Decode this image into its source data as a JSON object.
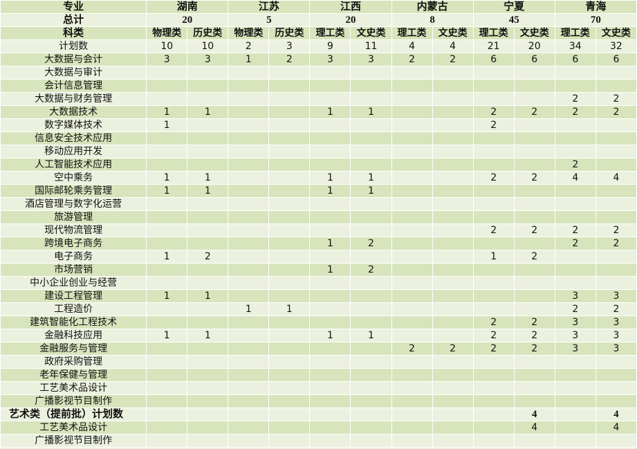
{
  "header": {
    "major_label": "专业",
    "total_label": "总计",
    "category_label": "科类",
    "provinces": [
      {
        "name": "湖南",
        "total": "20",
        "categories": [
          "物理类",
          "历史类"
        ]
      },
      {
        "name": "江苏",
        "total": "5",
        "categories": [
          "物理类",
          "历史类"
        ]
      },
      {
        "name": "江西",
        "total": "20",
        "categories": [
          "理工类",
          "文史类"
        ]
      },
      {
        "name": "内蒙古",
        "total": "8",
        "categories": [
          "理工类",
          "文史类"
        ]
      },
      {
        "name": "宁夏",
        "total": "45",
        "categories": [
          "理工类",
          "文史类"
        ]
      },
      {
        "name": "青海",
        "total": "70",
        "categories": [
          "理工类",
          "文史类"
        ]
      }
    ]
  },
  "rows": [
    {
      "name": "计划数",
      "values": [
        "10",
        "10",
        "2",
        "3",
        "9",
        "11",
        "4",
        "4",
        "21",
        "20",
        "34",
        "32"
      ]
    },
    {
      "name": "大数据与会计",
      "values": [
        "3",
        "3",
        "1",
        "2",
        "3",
        "3",
        "2",
        "2",
        "6",
        "6",
        "6",
        "6"
      ]
    },
    {
      "name": "大数据与审计",
      "values": [
        "",
        "",
        "",
        "",
        "",
        "",
        "",
        "",
        "",
        "",
        "",
        ""
      ]
    },
    {
      "name": "会计信息管理",
      "values": [
        "",
        "",
        "",
        "",
        "",
        "",
        "",
        "",
        "",
        "",
        "",
        ""
      ]
    },
    {
      "name": "大数据与财务管理",
      "values": [
        "",
        "",
        "",
        "",
        "",
        "",
        "",
        "",
        "",
        "",
        "2",
        "2"
      ]
    },
    {
      "name": "大数据技术",
      "values": [
        "1",
        "1",
        "",
        "",
        "1",
        "1",
        "",
        "",
        "2",
        "2",
        "2",
        "2"
      ]
    },
    {
      "name": "数字媒体技术",
      "values": [
        "1",
        "",
        "",
        "",
        "",
        "",
        "",
        "",
        "2",
        "",
        "",
        ""
      ]
    },
    {
      "name": "信息安全技术应用",
      "values": [
        "",
        "",
        "",
        "",
        "",
        "",
        "",
        "",
        "",
        "",
        "",
        ""
      ]
    },
    {
      "name": "移动应用开发",
      "values": [
        "",
        "",
        "",
        "",
        "",
        "",
        "",
        "",
        "",
        "",
        "",
        ""
      ]
    },
    {
      "name": "人工智能技术应用",
      "values": [
        "",
        "",
        "",
        "",
        "",
        "",
        "",
        "",
        "",
        "",
        "2",
        ""
      ]
    },
    {
      "name": "空中乘务",
      "values": [
        "1",
        "1",
        "",
        "",
        "1",
        "1",
        "",
        "",
        "2",
        "2",
        "4",
        "4"
      ]
    },
    {
      "name": "国际邮轮乘务管理",
      "values": [
        "1",
        "1",
        "",
        "",
        "1",
        "1",
        "",
        "",
        "",
        "",
        "",
        ""
      ]
    },
    {
      "name": "酒店管理与数字化运营",
      "values": [
        "",
        "",
        "",
        "",
        "",
        "",
        "",
        "",
        "",
        "",
        "",
        ""
      ]
    },
    {
      "name": "旅游管理",
      "values": [
        "",
        "",
        "",
        "",
        "",
        "",
        "",
        "",
        "",
        "",
        "",
        ""
      ]
    },
    {
      "name": "现代物流管理",
      "values": [
        "",
        "",
        "",
        "",
        "",
        "",
        "",
        "",
        "2",
        "2",
        "2",
        "2"
      ]
    },
    {
      "name": "跨境电子商务",
      "values": [
        "",
        "",
        "",
        "",
        "1",
        "2",
        "",
        "",
        "",
        "",
        "2",
        "2"
      ]
    },
    {
      "name": "电子商务",
      "values": [
        "1",
        "2",
        "",
        "",
        "",
        "",
        "",
        "",
        "1",
        "2",
        "",
        ""
      ]
    },
    {
      "name": "市场营销",
      "values": [
        "",
        "",
        "",
        "",
        "1",
        "2",
        "",
        "",
        "",
        "",
        "",
        ""
      ]
    },
    {
      "name": "中小企业创业与经营",
      "values": [
        "",
        "",
        "",
        "",
        "",
        "",
        "",
        "",
        "",
        "",
        "",
        ""
      ]
    },
    {
      "name": "建设工程管理",
      "values": [
        "1",
        "1",
        "",
        "",
        "",
        "",
        "",
        "",
        "",
        "",
        "3",
        "3"
      ]
    },
    {
      "name": "工程造价",
      "values": [
        "",
        "",
        "1",
        "1",
        "",
        "",
        "",
        "",
        "",
        "",
        "2",
        "2"
      ]
    },
    {
      "name": "建筑智能化工程技术",
      "values": [
        "",
        "",
        "",
        "",
        "",
        "",
        "",
        "",
        "2",
        "2",
        "3",
        "3"
      ]
    },
    {
      "name": "金融科技应用",
      "values": [
        "1",
        "1",
        "",
        "",
        "1",
        "1",
        "",
        "",
        "2",
        "2",
        "3",
        "3"
      ]
    },
    {
      "name": "金融服务与管理",
      "values": [
        "",
        "",
        "",
        "",
        "",
        "",
        "2",
        "2",
        "2",
        "2",
        "3",
        "3"
      ]
    },
    {
      "name": "政府采购管理",
      "values": [
        "",
        "",
        "",
        "",
        "",
        "",
        "",
        "",
        "",
        "",
        "",
        ""
      ]
    },
    {
      "name": "老年保健与管理",
      "values": [
        "",
        "",
        "",
        "",
        "",
        "",
        "",
        "",
        "",
        "",
        "",
        ""
      ]
    },
    {
      "name": "工艺美术品设计",
      "values": [
        "",
        "",
        "",
        "",
        "",
        "",
        "",
        "",
        "",
        "",
        "",
        ""
      ]
    },
    {
      "name": "广播影视节目制作",
      "values": [
        "",
        "",
        "",
        "",
        "",
        "",
        "",
        "",
        "",
        "",
        "",
        ""
      ]
    },
    {
      "name": "艺术类（提前批）计划数",
      "bold": true,
      "values": [
        "",
        "",
        "",
        "",
        "",
        "",
        "",
        "",
        "",
        "4",
        "",
        "4"
      ]
    },
    {
      "name": "工艺美术品设计",
      "values": [
        "",
        "",
        "",
        "",
        "",
        "",
        "",
        "",
        "",
        "4",
        "",
        "4"
      ]
    },
    {
      "name": "广播影视节目制作",
      "values": [
        "",
        "",
        "",
        "",
        "",
        "",
        "",
        "",
        "",
        "",
        "",
        ""
      ]
    }
  ],
  "colors": {
    "row_dark": "#d8e4bc",
    "row_light": "#ebf1de",
    "grid": "#ffffff"
  }
}
